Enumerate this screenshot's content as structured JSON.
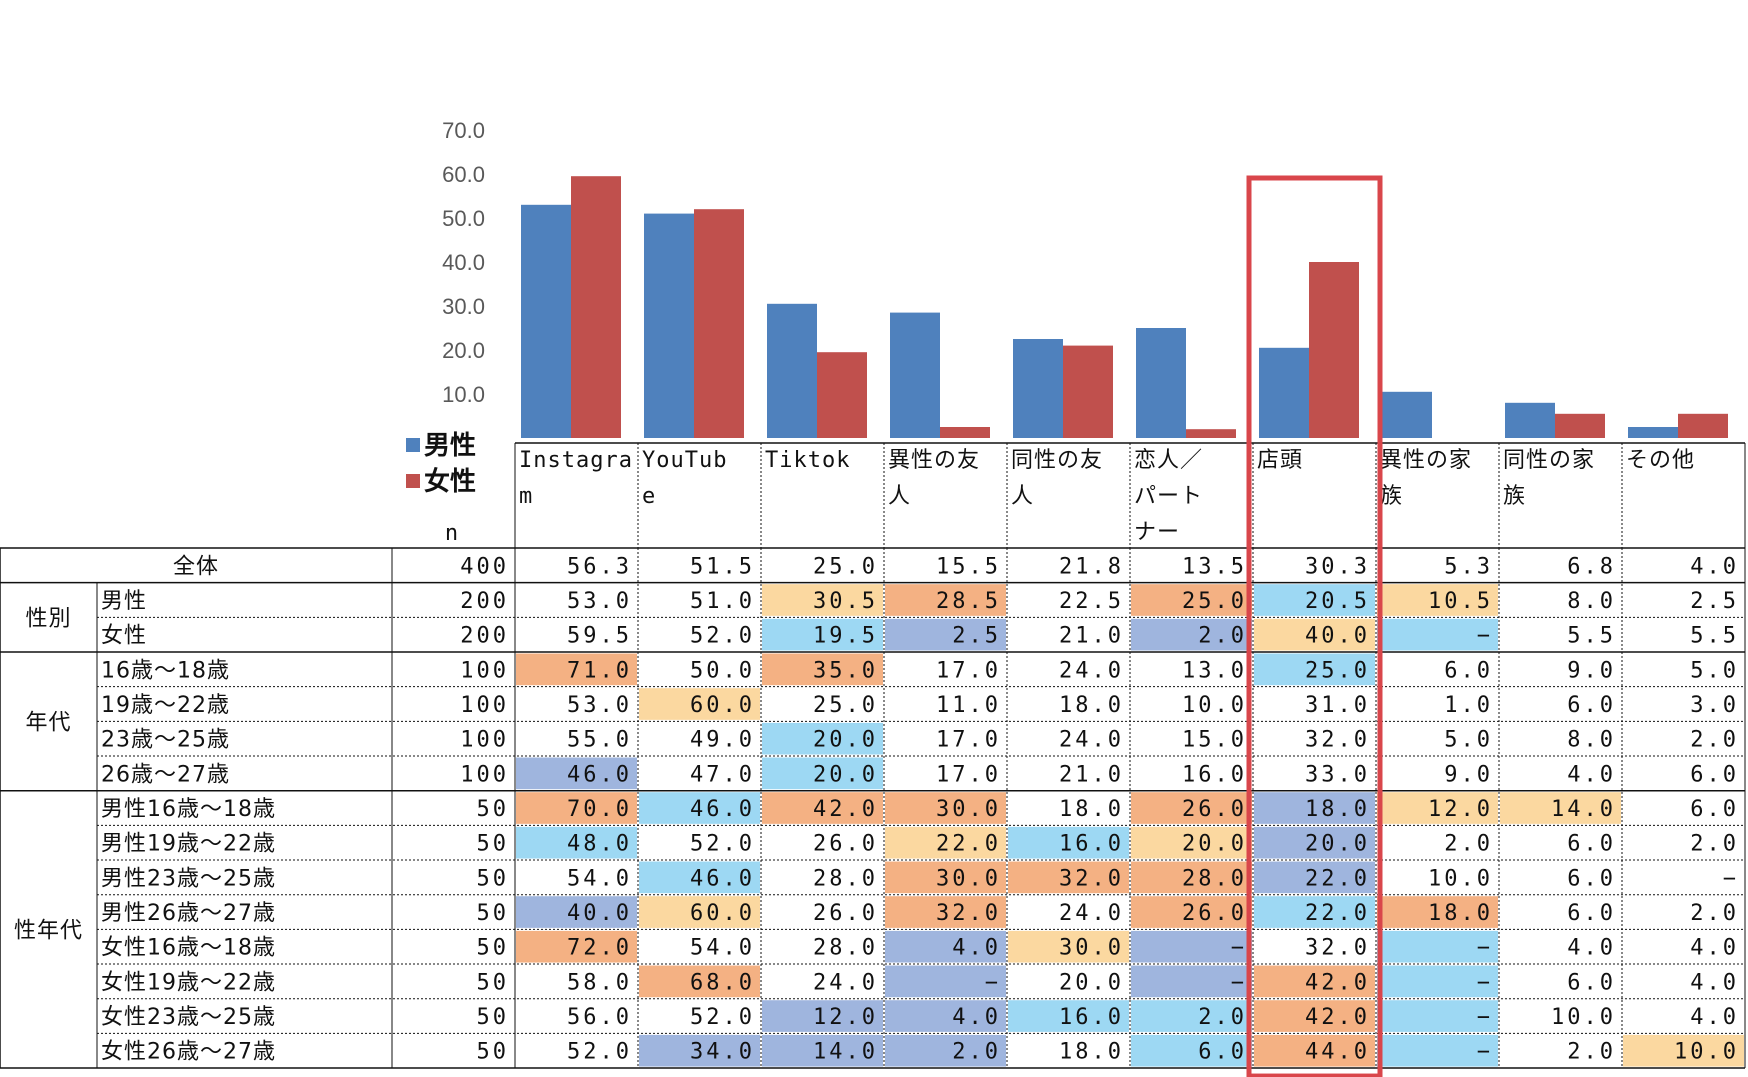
{
  "chart_data": {
    "type": "bar",
    "ylim": [
      0,
      70
    ],
    "yticks": [
      "70.0",
      "60.0",
      "50.0",
      "40.0",
      "30.0",
      "20.0",
      "10.0"
    ],
    "legend": [
      "男性",
      "女性"
    ],
    "colors": {
      "男性": "#4f81bd",
      "女性": "#c0504d",
      "highlight": "#d9464b"
    },
    "categories": [
      [
        "Instagra",
        "m"
      ],
      [
        "YouTub",
        "e"
      ],
      [
        "Tiktok"
      ],
      [
        "異性の友",
        "人"
      ],
      [
        "同性の友",
        "人"
      ],
      [
        "恋人／",
        "パート",
        "ナー"
      ],
      [
        "店頭"
      ],
      [
        "異性の家",
        "族"
      ],
      [
        "同性の家",
        "族"
      ],
      [
        "その他"
      ]
    ],
    "series": [
      {
        "name": "男性",
        "values": [
          53.0,
          51.0,
          30.5,
          28.5,
          22.5,
          25.0,
          20.5,
          10.5,
          8.0,
          2.5
        ]
      },
      {
        "name": "女性",
        "values": [
          59.5,
          52.0,
          19.5,
          2.5,
          21.0,
          2.0,
          40.0,
          0,
          5.5,
          5.5
        ]
      }
    ],
    "highlight_category": "店頭",
    "n_label": "n",
    "cell_colors": {
      "orange": "#fbd8a0",
      "salmon": "#f4b183",
      "lightblue": "#9dd8f3",
      "periwinkle": "#9fb5de"
    },
    "table": [
      {
        "group": "",
        "label": "全体",
        "n": "400",
        "values": [
          "56.3",
          "51.5",
          "25.0",
          "15.5",
          "21.8",
          "13.5",
          "30.3",
          "5.3",
          "6.8",
          "4.0"
        ],
        "colors": [
          "",
          "",
          "",
          "",
          "",
          "",
          "",
          "",
          "",
          ""
        ]
      },
      {
        "group": "性別",
        "label": "男性",
        "n": "200",
        "values": [
          "53.0",
          "51.0",
          "30.5",
          "28.5",
          "22.5",
          "25.0",
          "20.5",
          "10.5",
          "8.0",
          "2.5"
        ],
        "colors": [
          "",
          "",
          "orange",
          "salmon",
          "",
          "salmon",
          "lightblue",
          "orange",
          "",
          ""
        ]
      },
      {
        "group": "",
        "label": "女性",
        "n": "200",
        "values": [
          "59.5",
          "52.0",
          "19.5",
          "2.5",
          "21.0",
          "2.0",
          "40.0",
          "−",
          "5.5",
          "5.5"
        ],
        "colors": [
          "",
          "",
          "lightblue",
          "periwinkle",
          "",
          "periwinkle",
          "orange",
          "lightblue",
          "",
          ""
        ]
      },
      {
        "group": "年代",
        "label": "16歳～18歳",
        "n": "100",
        "values": [
          "71.0",
          "50.0",
          "35.0",
          "17.0",
          "24.0",
          "13.0",
          "25.0",
          "6.0",
          "9.0",
          "5.0"
        ],
        "colors": [
          "salmon",
          "",
          "salmon",
          "",
          "",
          "",
          "lightblue",
          "",
          "",
          ""
        ]
      },
      {
        "group": "",
        "label": "19歳～22歳",
        "n": "100",
        "values": [
          "53.0",
          "60.0",
          "25.0",
          "11.0",
          "18.0",
          "10.0",
          "31.0",
          "1.0",
          "6.0",
          "3.0"
        ],
        "colors": [
          "",
          "orange",
          "",
          "",
          "",
          "",
          "",
          "",
          "",
          ""
        ]
      },
      {
        "group": "",
        "label": "23歳～25歳",
        "n": "100",
        "values": [
          "55.0",
          "49.0",
          "20.0",
          "17.0",
          "24.0",
          "15.0",
          "32.0",
          "5.0",
          "8.0",
          "2.0"
        ],
        "colors": [
          "",
          "",
          "lightblue",
          "",
          "",
          "",
          "",
          "",
          "",
          ""
        ]
      },
      {
        "group": "",
        "label": "26歳～27歳",
        "n": "100",
        "values": [
          "46.0",
          "47.0",
          "20.0",
          "17.0",
          "21.0",
          "16.0",
          "33.0",
          "9.0",
          "4.0",
          "6.0"
        ],
        "colors": [
          "periwinkle",
          "",
          "lightblue",
          "",
          "",
          "",
          "",
          "",
          "",
          ""
        ]
      },
      {
        "group": "性年代",
        "label": "男性16歳～18歳",
        "n": "50",
        "values": [
          "70.0",
          "46.0",
          "42.0",
          "30.0",
          "18.0",
          "26.0",
          "18.0",
          "12.0",
          "14.0",
          "6.0"
        ],
        "colors": [
          "salmon",
          "lightblue",
          "salmon",
          "salmon",
          "",
          "salmon",
          "periwinkle",
          "orange",
          "orange",
          ""
        ]
      },
      {
        "group": "",
        "label": "男性19歳～22歳",
        "n": "50",
        "values": [
          "48.0",
          "52.0",
          "26.0",
          "22.0",
          "16.0",
          "20.0",
          "20.0",
          "2.0",
          "6.0",
          "2.0"
        ],
        "colors": [
          "lightblue",
          "",
          "",
          "orange",
          "lightblue",
          "orange",
          "periwinkle",
          "",
          "",
          ""
        ]
      },
      {
        "group": "",
        "label": "男性23歳～25歳",
        "n": "50",
        "values": [
          "54.0",
          "46.0",
          "28.0",
          "30.0",
          "32.0",
          "28.0",
          "22.0",
          "10.0",
          "6.0",
          "−"
        ],
        "colors": [
          "",
          "lightblue",
          "",
          "salmon",
          "salmon",
          "salmon",
          "periwinkle",
          "",
          "",
          ""
        ]
      },
      {
        "group": "",
        "label": "男性26歳～27歳",
        "n": "50",
        "values": [
          "40.0",
          "60.0",
          "26.0",
          "32.0",
          "24.0",
          "26.0",
          "22.0",
          "18.0",
          "6.0",
          "2.0"
        ],
        "colors": [
          "periwinkle",
          "orange",
          "",
          "salmon",
          "",
          "salmon",
          "lightblue",
          "salmon",
          "",
          ""
        ]
      },
      {
        "group": "",
        "label": "女性16歳～18歳",
        "n": "50",
        "values": [
          "72.0",
          "54.0",
          "28.0",
          "4.0",
          "30.0",
          "−",
          "32.0",
          "−",
          "4.0",
          "4.0"
        ],
        "colors": [
          "salmon",
          "",
          "",
          "periwinkle",
          "orange",
          "periwinkle",
          "",
          "lightblue",
          "",
          ""
        ]
      },
      {
        "group": "",
        "label": "女性19歳～22歳",
        "n": "50",
        "values": [
          "58.0",
          "68.0",
          "24.0",
          "−",
          "20.0",
          "−",
          "42.0",
          "−",
          "6.0",
          "4.0"
        ],
        "colors": [
          "",
          "salmon",
          "",
          "periwinkle",
          "",
          "periwinkle",
          "salmon",
          "lightblue",
          "",
          ""
        ]
      },
      {
        "group": "",
        "label": "女性23歳～25歳",
        "n": "50",
        "values": [
          "56.0",
          "52.0",
          "12.0",
          "4.0",
          "16.0",
          "2.0",
          "42.0",
          "−",
          "10.0",
          "4.0"
        ],
        "colors": [
          "",
          "",
          "periwinkle",
          "periwinkle",
          "lightblue",
          "lightblue",
          "salmon",
          "lightblue",
          "",
          ""
        ]
      },
      {
        "group": "",
        "label": "女性26歳～27歳",
        "n": "50",
        "values": [
          "52.0",
          "34.0",
          "14.0",
          "2.0",
          "18.0",
          "6.0",
          "44.0",
          "−",
          "2.0",
          "10.0"
        ],
        "colors": [
          "",
          "periwinkle",
          "periwinkle",
          "periwinkle",
          "",
          "lightblue",
          "salmon",
          "lightblue",
          "",
          "orange"
        ]
      }
    ]
  }
}
